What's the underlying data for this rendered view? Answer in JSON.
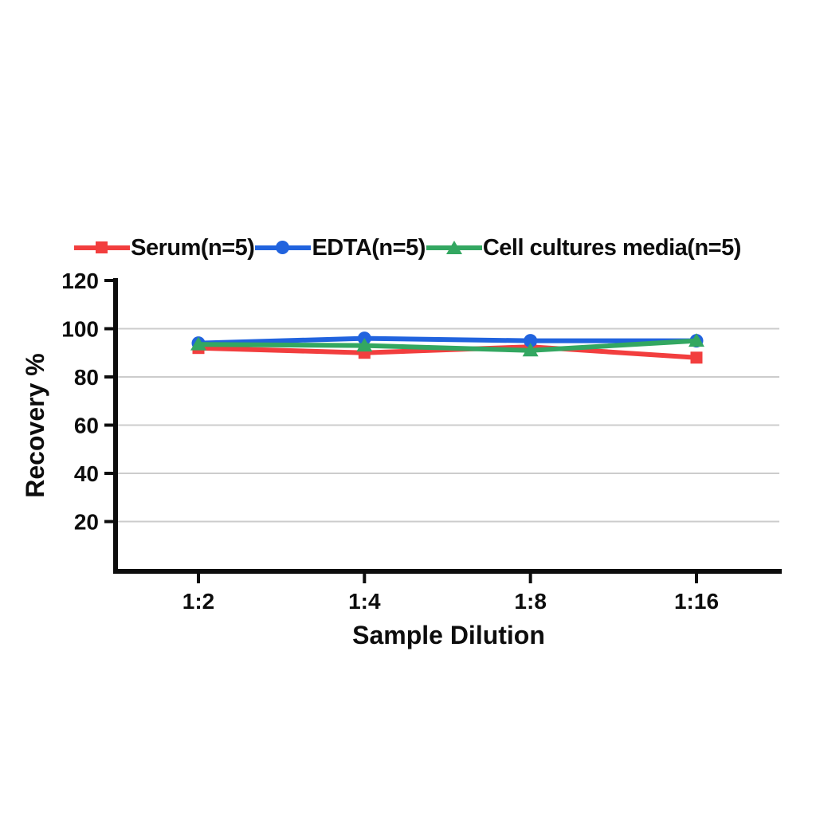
{
  "figure": {
    "background": "#ffffff",
    "axis_color": "#0d0d0d",
    "grid_color": "#cccccc"
  },
  "chart_data": {
    "type": "line",
    "title": "",
    "xlabel": "Sample Dilution",
    "ylabel": "Recovery %",
    "categories": [
      "1:2",
      "1:4",
      "1:8",
      "1:16"
    ],
    "series": [
      {
        "name": "Serum(n=5)",
        "marker": "square",
        "color": "#f23e3e",
        "values": [
          92,
          90,
          92.5,
          88
        ]
      },
      {
        "name": "EDTA(n=5)",
        "marker": "circle",
        "color": "#2163de",
        "values": [
          94,
          96,
          95,
          95
        ]
      },
      {
        "name": "Cell cultures media(n=5)",
        "marker": "triangle",
        "color": "#33a761",
        "values": [
          93.5,
          93,
          91,
          95
        ]
      }
    ],
    "ylim": [
      0,
      120
    ],
    "yticks": [
      20,
      40,
      60,
      80,
      100,
      120
    ],
    "gridline_values": [
      20,
      40,
      60,
      80,
      100
    ],
    "grid": "horizontal",
    "legend_position": "top"
  }
}
